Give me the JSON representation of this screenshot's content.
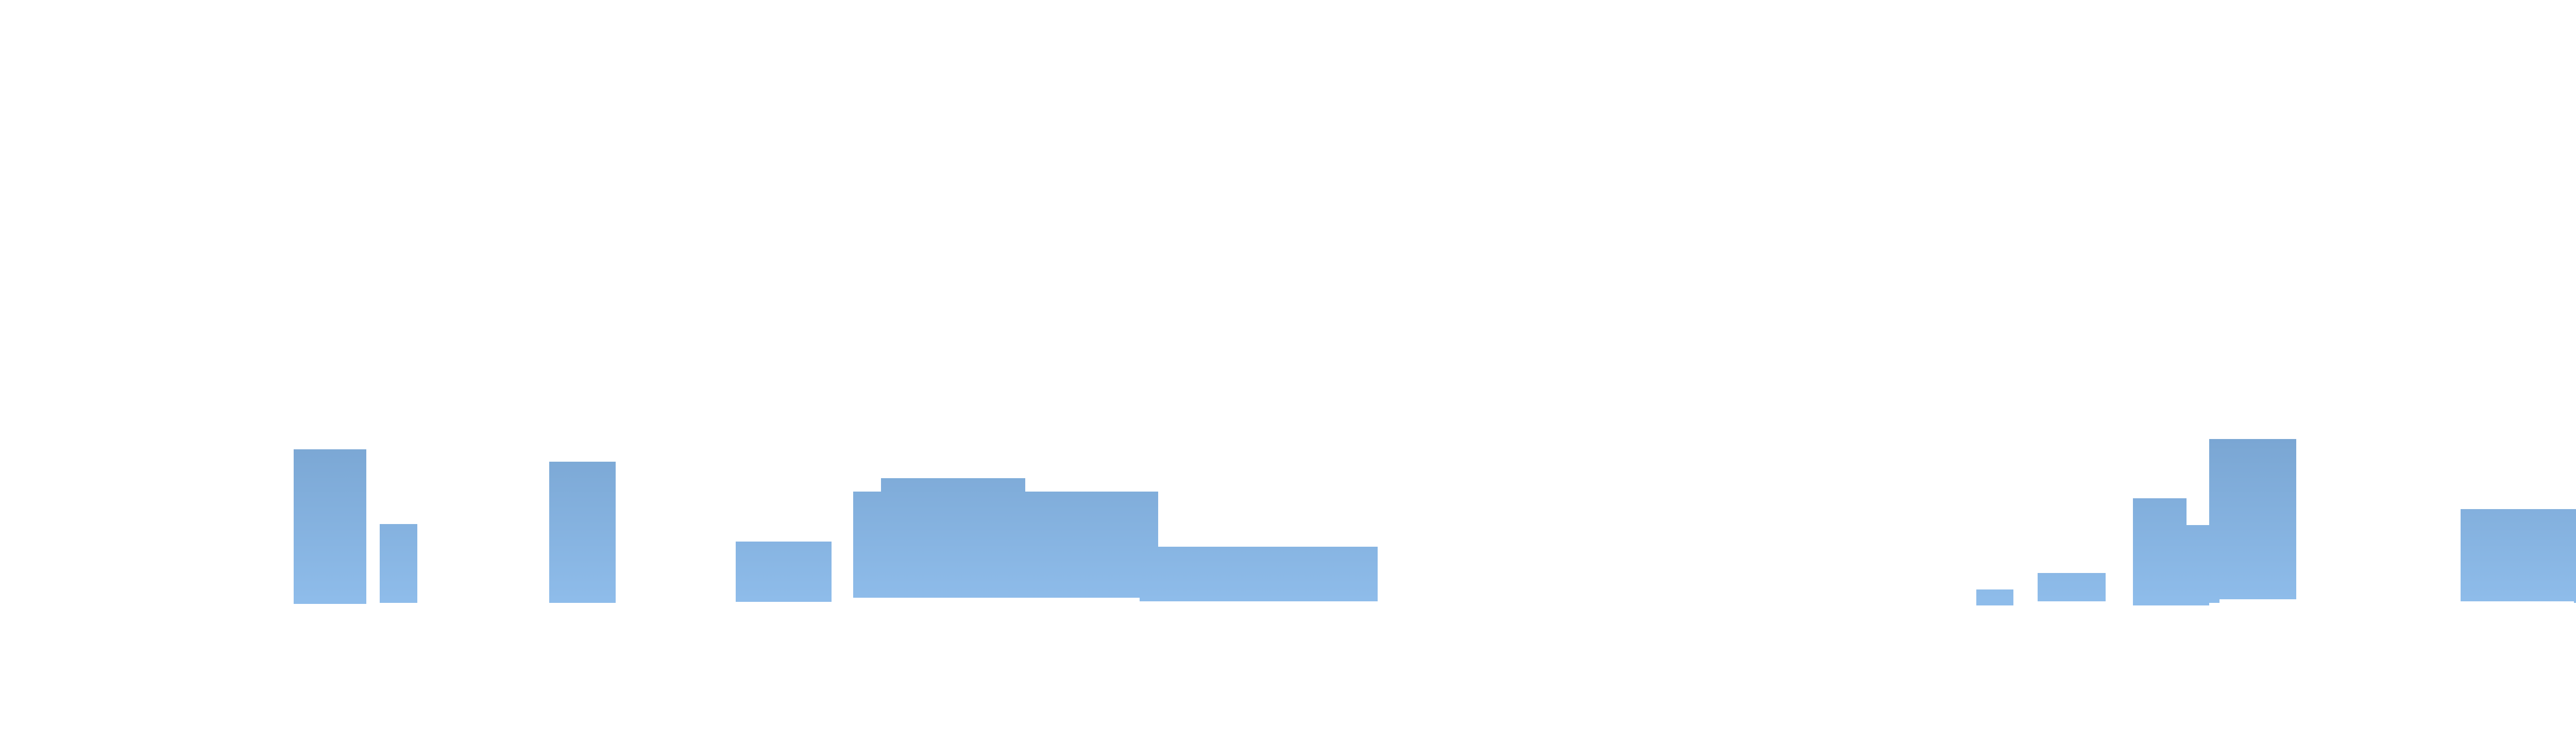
{
  "chart_data": {
    "type": "bar",
    "title": "",
    "xlabel": "",
    "ylabel": "",
    "x_range": [
      0,
      5120
    ],
    "y_range": [
      0,
      1440
    ],
    "grid": false,
    "legend": "none",
    "colors": {
      "bar_top": "#7aa6d3",
      "bar_bottom": "#8fbdeb",
      "background": "#ffffff"
    },
    "series": [
      {
        "values": [
          {
            "x0": 570,
            "x1": 711,
            "y0": 1172,
            "y1": 872
          },
          {
            "x0": 737,
            "x1": 810,
            "y0": 1170,
            "y1": 1017
          },
          {
            "x0": 1066,
            "x1": 1195,
            "y0": 1170,
            "y1": 896
          },
          {
            "x0": 1428,
            "x1": 1614,
            "y0": 1168,
            "y1": 1051
          },
          {
            "x0": 1656,
            "x1": 1710,
            "y0": 1160,
            "y1": 954
          },
          {
            "x0": 1710,
            "x1": 1990,
            "y0": 1160,
            "y1": 928
          },
          {
            "x0": 1990,
            "x1": 2212,
            "y0": 1160,
            "y1": 954
          },
          {
            "x0": 2212,
            "x1": 2248,
            "y0": 1167,
            "y1": 954
          },
          {
            "x0": 2248,
            "x1": 2674,
            "y0": 1167,
            "y1": 1061
          },
          {
            "x0": 3836,
            "x1": 3908,
            "y0": 1175,
            "y1": 1144
          },
          {
            "x0": 3955,
            "x1": 4087,
            "y0": 1167,
            "y1": 1112
          },
          {
            "x0": 4140,
            "x1": 4244,
            "y0": 1175,
            "y1": 967
          },
          {
            "x0": 4244,
            "x1": 4288,
            "y0": 1175,
            "y1": 1019
          },
          {
            "x0": 4288,
            "x1": 4308,
            "y0": 1170,
            "y1": 1019
          },
          {
            "x0": 4288,
            "x1": 4457,
            "y0": 1163,
            "y1": 852
          },
          {
            "x0": 4776,
            "x1": 5003,
            "y0": 1167,
            "y1": 988
          },
          {
            "x0": 4996,
            "x1": 5095,
            "y0": 1170,
            "y1": 1052
          }
        ]
      }
    ]
  }
}
